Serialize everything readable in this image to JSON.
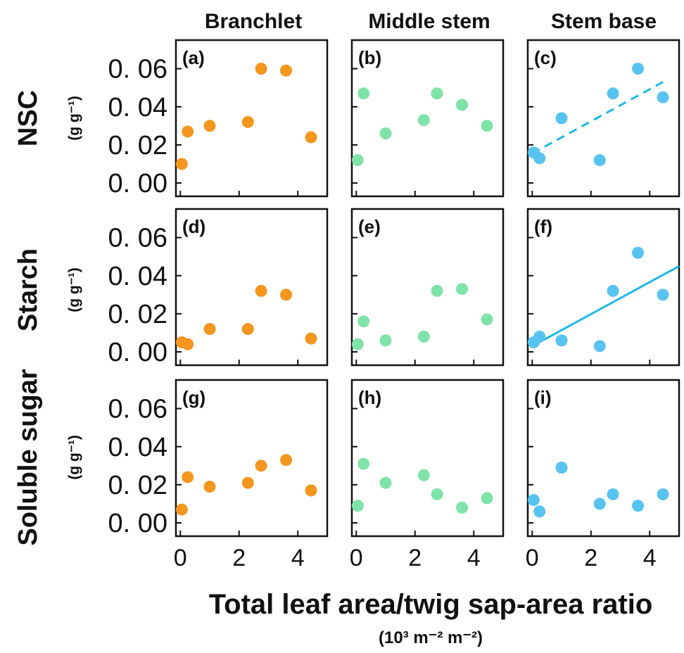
{
  "figure": {
    "col_titles": [
      "Branchlet",
      "Middle stem",
      "Stem base"
    ],
    "row_titles": [
      "NSC",
      "Starch",
      "Soluble sugar"
    ],
    "row_units": [
      "(g g⁻¹)",
      "(g g⁻¹)",
      "(g g⁻¹)"
    ],
    "xlabel": "Total leaf area/twig sap-area ratio",
    "xunit": "(10³ m⁻² m⁻²)",
    "y_ticks": [
      "0. 00",
      "0. 02",
      "0. 04",
      "0. 06"
    ],
    "x_ticks": [
      "0",
      "2",
      "4"
    ]
  },
  "colors": {
    "branchlet": "#F5961E",
    "middle_stem": "#7FE3A9",
    "stem_base": "#58C3F0",
    "regression": "#1EB8EA"
  },
  "chart_data": [
    {
      "panel": "(a)",
      "type": "scatter",
      "row": 0,
      "col": 0,
      "color": "branchlet",
      "x": [
        0.05,
        0.25,
        1.0,
        2.3,
        2.75,
        3.6,
        4.45
      ],
      "y": [
        0.01,
        0.027,
        0.03,
        0.032,
        0.06,
        0.059,
        0.024
      ],
      "xlim": [
        -0.15,
        5
      ],
      "ylim": [
        -0.007,
        0.075
      ]
    },
    {
      "panel": "(b)",
      "type": "scatter",
      "row": 0,
      "col": 1,
      "color": "middle_stem",
      "x": [
        0.05,
        0.25,
        1.0,
        2.3,
        2.75,
        3.6,
        4.45
      ],
      "y": [
        0.012,
        0.047,
        0.026,
        0.033,
        0.047,
        0.041,
        0.03
      ],
      "xlim": [
        -0.15,
        5
      ],
      "ylim": [
        -0.007,
        0.075
      ]
    },
    {
      "panel": "(c)",
      "type": "scatter",
      "row": 0,
      "col": 2,
      "color": "stem_base",
      "x": [
        0.05,
        0.25,
        1.0,
        2.3,
        2.75,
        3.6,
        4.45
      ],
      "y": [
        0.016,
        0.013,
        0.034,
        0.012,
        0.047,
        0.06,
        0.045
      ],
      "xlim": [
        -0.15,
        5
      ],
      "ylim": [
        -0.007,
        0.075
      ],
      "fit": {
        "style": "dashed",
        "x": [
          0.0,
          4.45
        ],
        "y": [
          0.0155,
          0.053
        ]
      }
    },
    {
      "panel": "(d)",
      "type": "scatter",
      "row": 1,
      "col": 0,
      "color": "branchlet",
      "x": [
        0.05,
        0.25,
        1.0,
        2.3,
        2.75,
        3.6,
        4.45
      ],
      "y": [
        0.005,
        0.004,
        0.012,
        0.012,
        0.032,
        0.03,
        0.007
      ],
      "xlim": [
        -0.15,
        5
      ],
      "ylim": [
        -0.007,
        0.075
      ]
    },
    {
      "panel": "(e)",
      "type": "scatter",
      "row": 1,
      "col": 1,
      "color": "middle_stem",
      "x": [
        0.05,
        0.25,
        1.0,
        2.3,
        2.75,
        3.6,
        4.45
      ],
      "y": [
        0.004,
        0.016,
        0.006,
        0.008,
        0.032,
        0.033,
        0.017
      ],
      "xlim": [
        -0.15,
        5
      ],
      "ylim": [
        -0.007,
        0.075
      ]
    },
    {
      "panel": "(f)",
      "type": "scatter",
      "row": 1,
      "col": 2,
      "color": "stem_base",
      "x": [
        0.05,
        0.25,
        1.0,
        2.3,
        2.75,
        3.6,
        4.45
      ],
      "y": [
        0.005,
        0.008,
        0.006,
        0.003,
        0.032,
        0.052,
        0.03
      ],
      "xlim": [
        -0.15,
        5
      ],
      "ylim": [
        -0.007,
        0.075
      ],
      "fit": {
        "style": "solid",
        "x": [
          0.0,
          5.0
        ],
        "y": [
          0.003,
          0.045
        ]
      }
    },
    {
      "panel": "(g)",
      "type": "scatter",
      "row": 2,
      "col": 0,
      "color": "branchlet",
      "x": [
        0.05,
        0.25,
        1.0,
        2.3,
        2.75,
        3.6,
        4.45
      ],
      "y": [
        0.007,
        0.024,
        0.019,
        0.021,
        0.03,
        0.033,
        0.017
      ],
      "xlim": [
        -0.15,
        5
      ],
      "ylim": [
        -0.007,
        0.075
      ]
    },
    {
      "panel": "(h)",
      "type": "scatter",
      "row": 2,
      "col": 1,
      "color": "middle_stem",
      "x": [
        0.05,
        0.25,
        1.0,
        2.3,
        2.75,
        3.6,
        4.45
      ],
      "y": [
        0.009,
        0.031,
        0.021,
        0.025,
        0.015,
        0.008,
        0.013
      ],
      "xlim": [
        -0.15,
        5
      ],
      "ylim": [
        -0.007,
        0.075
      ]
    },
    {
      "panel": "(i)",
      "type": "scatter",
      "row": 2,
      "col": 2,
      "color": "stem_base",
      "x": [
        0.05,
        0.25,
        1.0,
        2.3,
        2.75,
        3.6,
        4.45
      ],
      "y": [
        0.012,
        0.006,
        0.029,
        0.01,
        0.015,
        0.009,
        0.015
      ],
      "xlim": [
        -0.15,
        5
      ],
      "ylim": [
        -0.007,
        0.075
      ]
    }
  ]
}
